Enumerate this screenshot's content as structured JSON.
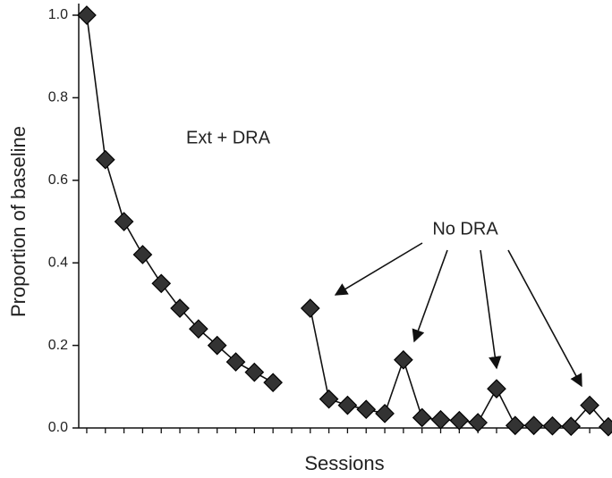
{
  "chart_data": {
    "type": "line",
    "xlabel": "Sessions",
    "ylabel": "Proportion of baseline",
    "x": [
      1,
      2,
      3,
      4,
      5,
      6,
      7,
      8,
      9,
      10,
      11,
      12,
      13,
      14,
      15,
      16,
      17,
      18,
      19,
      20,
      21,
      22,
      23,
      24,
      25,
      26,
      27,
      28,
      29
    ],
    "series": [
      {
        "color": "#333333",
        "values": [
          1.0,
          0.65,
          0.5,
          0.42,
          0.35,
          0.29,
          0.24,
          0.2,
          0.16,
          0.135,
          0.11,
          null,
          0.29,
          0.07,
          0.055,
          0.045,
          0.035,
          0.165,
          0.025,
          0.02,
          0.018,
          0.013,
          0.095,
          0.006,
          0.006,
          0.005,
          0.004,
          0.055,
          0.003
        ]
      }
    ],
    "xlim": [
      0.57,
      29.15
    ],
    "ylim": [
      0,
      1.0
    ],
    "yticks": [
      {
        "value": 0,
        "label": "0.0"
      },
      0.2,
      0.4,
      0.6,
      0.8,
      {
        "value": 1.0,
        "label": "1.0"
      }
    ],
    "xticks": [
      1,
      2,
      3,
      4,
      5,
      6,
      7,
      8,
      9,
      10,
      11,
      12,
      13,
      14,
      15,
      16,
      17,
      18,
      19,
      20,
      21,
      22,
      23,
      24,
      25,
      26,
      27,
      28,
      29
    ],
    "annotations": [
      "Ext + DRA",
      "No DRA"
    ]
  }
}
